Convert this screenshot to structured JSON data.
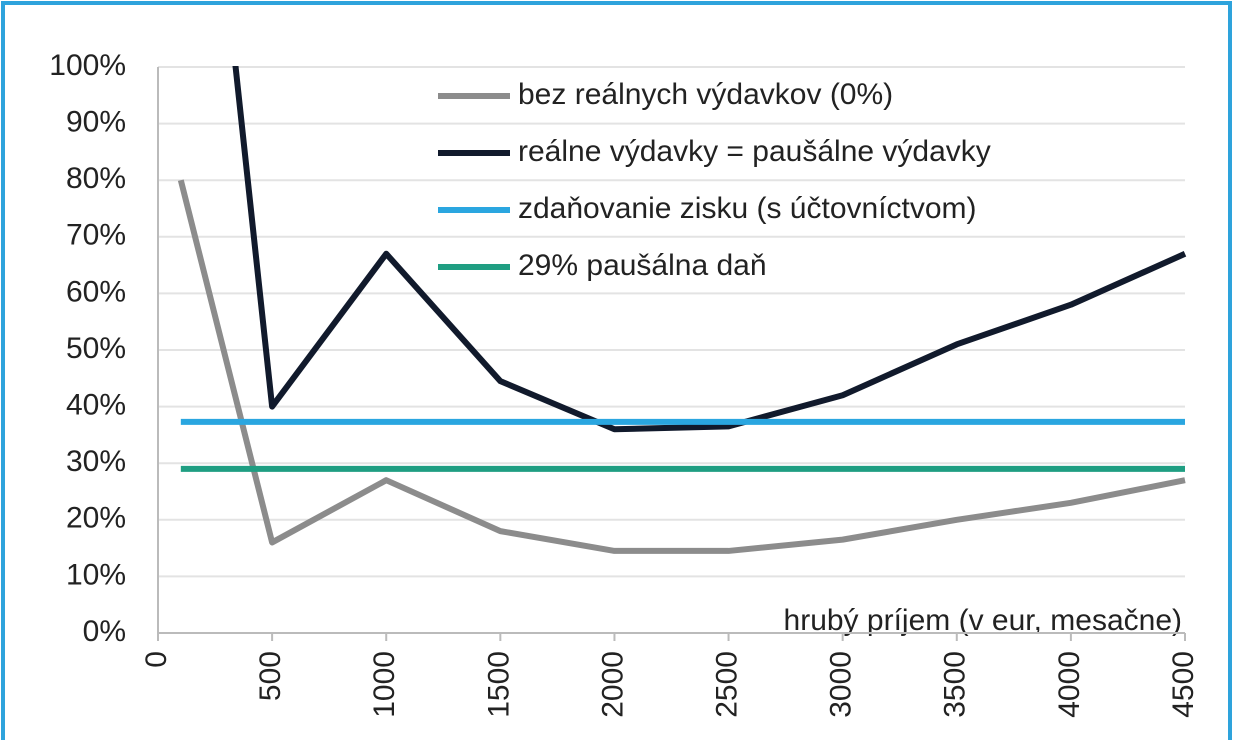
{
  "chart_data": {
    "type": "line",
    "x_label": "hrubý príjem (v eur, mesačne)",
    "x": [
      100,
      500,
      1000,
      1500,
      2000,
      2500,
      3000,
      3500,
      4000,
      4500
    ],
    "series": [
      {
        "name": "bez reálnych výdavkov (0%)",
        "color": "#8c8c8c",
        "values": [
          80,
          16,
          27,
          18,
          14.5,
          14.5,
          16.5,
          20,
          23,
          27
        ]
      },
      {
        "name": "reálne výdavky = paušálne výdavky",
        "color": "#111a2c",
        "values": [
          190,
          40,
          67,
          44.5,
          36,
          36.5,
          42,
          51,
          58,
          67
        ]
      },
      {
        "name": "zdaňovanie zisku (s účtovníctvom)",
        "color": "#2aa6e0",
        "values": [
          37.3,
          37.3,
          37.3,
          37.3,
          37.3,
          37.3,
          37.3,
          37.3,
          37.3,
          37.3
        ]
      },
      {
        "name": "29% paušálna daň",
        "color": "#1f9e82",
        "values": [
          29,
          29,
          29,
          29,
          29,
          29,
          29,
          29,
          29,
          29
        ]
      }
    ],
    "xlim": [
      0,
      4500
    ],
    "xticks": [
      0,
      500,
      1000,
      1500,
      2000,
      2500,
      3000,
      3500,
      4000,
      4500
    ],
    "ylim": [
      0,
      100
    ],
    "yticks": [
      {
        "value": 0,
        "label": "0%"
      },
      {
        "value": 10,
        "label": "10%"
      },
      {
        "value": 20,
        "label": "20%"
      },
      {
        "value": 30,
        "label": "30%"
      },
      {
        "value": 40,
        "label": "40%"
      },
      {
        "value": 50,
        "label": "50%"
      },
      {
        "value": 60,
        "label": "60%"
      },
      {
        "value": 70,
        "label": "70%"
      },
      {
        "value": 80,
        "label": "80%"
      },
      {
        "value": 90,
        "label": "90%"
      },
      {
        "value": 100,
        "label": "100%"
      }
    ],
    "grid": true,
    "legend": "top"
  }
}
